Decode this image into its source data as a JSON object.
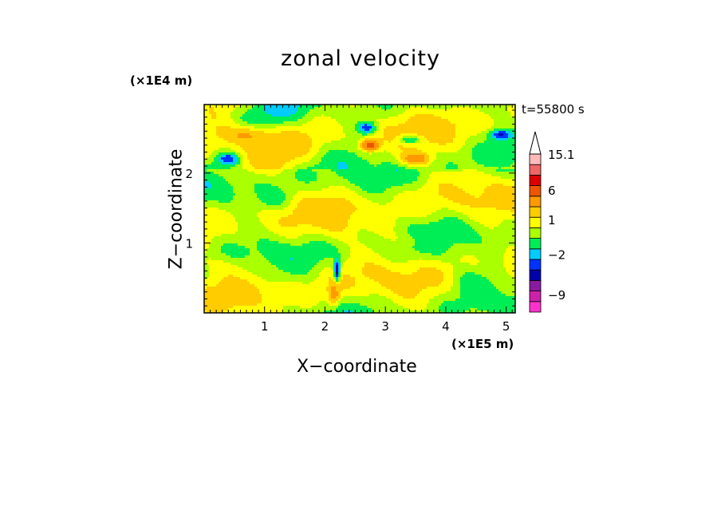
{
  "chart_data": {
    "type": "heatmap",
    "title": "zonal velocity",
    "xlabel": "X−coordinate",
    "ylabel": "Z−coordinate",
    "x_unit_label": "(×1E5 m)",
    "z_unit_label": "(×1E4 m)",
    "time_label": "t=55800 s",
    "xlim": [
      0,
      5.15
    ],
    "ylim": [
      0,
      2.98
    ],
    "x_ticks": [
      1,
      2,
      3,
      4,
      5
    ],
    "x_tick_labels": [
      "1",
      "2",
      "3",
      "4",
      "5"
    ],
    "y_ticks": [
      1,
      2
    ],
    "y_tick_labels": [
      "1",
      "2"
    ],
    "colorbar": {
      "labels": [
        {
          "text": "15.1",
          "value": 15.1
        },
        {
          "text": "6",
          "value": 6
        },
        {
          "text": "1",
          "value": 1
        },
        {
          "text": "−2",
          "value": -2
        },
        {
          "text": "−9",
          "value": -9
        }
      ],
      "bins": [
        {
          "color": "#ff33cc",
          "lo": -15,
          "hi": -11
        },
        {
          "color": "#cc22aa",
          "lo": -11,
          "hi": -8
        },
        {
          "color": "#8a1aa0",
          "lo": -8,
          "hi": -5
        },
        {
          "color": "#0000aa",
          "lo": -5,
          "hi": -3.5
        },
        {
          "color": "#0033ff",
          "lo": -3.5,
          "hi": -2.5
        },
        {
          "color": "#00ccff",
          "lo": -2.5,
          "hi": -1.5
        },
        {
          "color": "#00ee55",
          "lo": -1.5,
          "hi": -0.5
        },
        {
          "color": "#aaff00",
          "lo": -0.5,
          "hi": 0.3
        },
        {
          "color": "#ffff00",
          "lo": 0.3,
          "hi": 1.2
        },
        {
          "color": "#ffcc00",
          "lo": 1.2,
          "hi": 2.5
        },
        {
          "color": "#ff9900",
          "lo": 2.5,
          "hi": 4.5
        },
        {
          "color": "#ee5500",
          "lo": 4.5,
          "hi": 7
        },
        {
          "color": "#dd0000",
          "lo": 7,
          "hi": 9
        },
        {
          "color": "#ee6666",
          "lo": 9,
          "hi": 12
        },
        {
          "color": "#ffbbbb",
          "lo": 12,
          "hi": 15.1
        }
      ],
      "extend_max": true
    },
    "features": [
      {
        "x": 0.4,
        "z": 2.2,
        "value": -3.5,
        "sx": 0.18,
        "sz": 0.08
      },
      {
        "x": 2.7,
        "z": 2.65,
        "value": -3.5,
        "sx": 0.14,
        "sz": 0.08
      },
      {
        "x": 3.4,
        "z": 2.48,
        "value": -3.0,
        "sx": 0.2,
        "sz": 0.07
      },
      {
        "x": 4.9,
        "z": 2.55,
        "value": -3.5,
        "sx": 0.18,
        "sz": 0.07
      },
      {
        "x": 2.75,
        "z": 2.4,
        "value": 6.0,
        "sx": 0.14,
        "sz": 0.08
      },
      {
        "x": 3.5,
        "z": 2.2,
        "value": 4.0,
        "sx": 0.22,
        "sz": 0.08
      },
      {
        "x": 2.2,
        "z": 0.6,
        "value": -5.0,
        "sx": 0.05,
        "sz": 0.16
      },
      {
        "x": 2.15,
        "z": 0.25,
        "value": 3.0,
        "sx": 0.09,
        "sz": 0.15
      },
      {
        "x": 0.7,
        "z": 2.55,
        "value": 2.5,
        "sx": 0.35,
        "sz": 0.12
      },
      {
        "x": 1.2,
        "z": 1.6,
        "value": -1.0,
        "sx": 0.3,
        "sz": 0.15
      },
      {
        "x": 3.5,
        "z": 1.05,
        "value": 0.8,
        "sx": 0.5,
        "sz": 0.12
      },
      {
        "x": 2.2,
        "z": 1.3,
        "value": 0.8,
        "sx": 0.25,
        "sz": 0.3
      },
      {
        "x": 0.3,
        "z": 0.7,
        "value": 0.8,
        "sx": 0.5,
        "sz": 0.15
      },
      {
        "x": 4.4,
        "z": 0.5,
        "value": -1.0,
        "sx": 0.4,
        "sz": 0.2
      }
    ]
  }
}
